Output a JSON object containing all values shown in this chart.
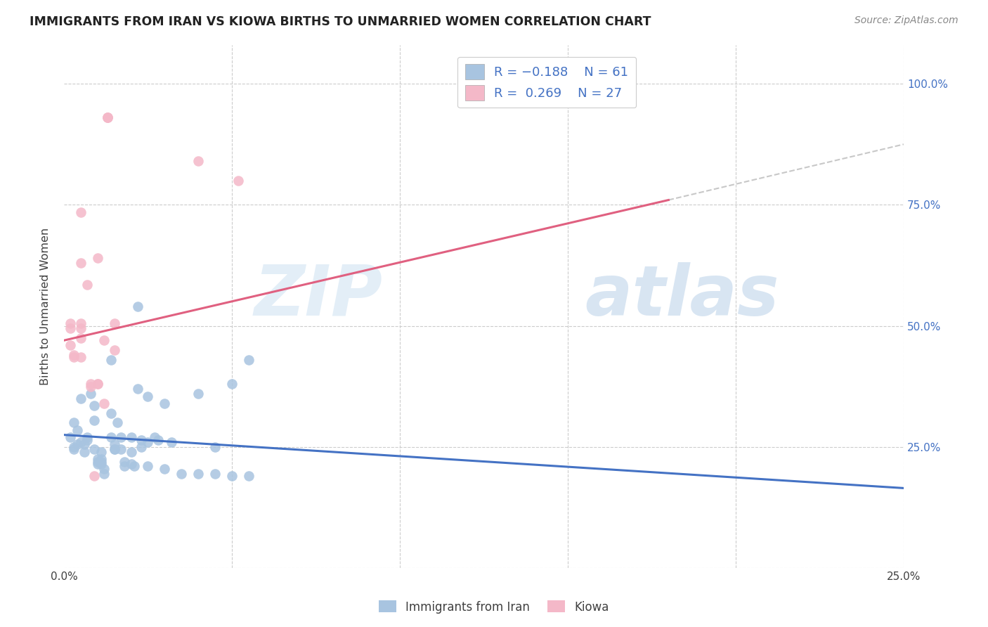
{
  "title": "IMMIGRANTS FROM IRAN VS KIOWA BIRTHS TO UNMARRIED WOMEN CORRELATION CHART",
  "source": "Source: ZipAtlas.com",
  "ylabel": "Births to Unmarried Women",
  "blue_color": "#a8c4e0",
  "pink_color": "#f4b8c8",
  "blue_line_color": "#4472c4",
  "pink_line_color": "#e06080",
  "dashed_line_color": "#c8c8c8",
  "text_color_blue": "#4472c4",
  "text_color_dark": "#404040",
  "background_color": "#ffffff",
  "watermark_zip": "ZIP",
  "watermark_atlas": "atlas",
  "blue_scatter": [
    [
      0.2,
      27.0
    ],
    [
      0.4,
      25.5
    ],
    [
      0.3,
      24.5
    ],
    [
      0.3,
      25.0
    ],
    [
      0.5,
      26.0
    ],
    [
      0.3,
      30.0
    ],
    [
      0.4,
      28.5
    ],
    [
      0.5,
      35.0
    ],
    [
      0.6,
      24.0
    ],
    [
      0.7,
      26.5
    ],
    [
      0.7,
      27.0
    ],
    [
      0.6,
      25.5
    ],
    [
      0.8,
      36.0
    ],
    [
      0.9,
      33.5
    ],
    [
      0.9,
      30.5
    ],
    [
      0.9,
      24.5
    ],
    [
      1.0,
      22.5
    ],
    [
      1.0,
      22.0
    ],
    [
      1.0,
      21.5
    ],
    [
      1.1,
      24.0
    ],
    [
      1.1,
      22.5
    ],
    [
      1.1,
      22.0
    ],
    [
      1.1,
      21.5
    ],
    [
      1.2,
      20.5
    ],
    [
      1.2,
      19.5
    ],
    [
      1.4,
      32.0
    ],
    [
      1.4,
      43.0
    ],
    [
      1.4,
      27.0
    ],
    [
      1.5,
      25.5
    ],
    [
      1.5,
      24.5
    ],
    [
      1.5,
      24.5
    ],
    [
      1.6,
      30.0
    ],
    [
      1.7,
      27.0
    ],
    [
      1.7,
      24.5
    ],
    [
      1.8,
      22.0
    ],
    [
      1.8,
      21.0
    ],
    [
      2.0,
      27.0
    ],
    [
      2.0,
      24.0
    ],
    [
      2.0,
      21.5
    ],
    [
      2.1,
      21.0
    ],
    [
      2.2,
      54.0
    ],
    [
      2.2,
      37.0
    ],
    [
      2.3,
      26.5
    ],
    [
      2.3,
      25.0
    ],
    [
      2.5,
      35.5
    ],
    [
      2.5,
      26.0
    ],
    [
      2.5,
      21.0
    ],
    [
      2.7,
      27.0
    ],
    [
      2.8,
      26.5
    ],
    [
      3.0,
      34.0
    ],
    [
      3.0,
      20.5
    ],
    [
      3.2,
      26.0
    ],
    [
      3.5,
      19.5
    ],
    [
      4.0,
      36.0
    ],
    [
      4.0,
      19.5
    ],
    [
      4.5,
      25.0
    ],
    [
      4.5,
      19.5
    ],
    [
      5.0,
      38.0
    ],
    [
      5.0,
      19.0
    ],
    [
      5.5,
      43.0
    ],
    [
      5.5,
      19.0
    ]
  ],
  "pink_scatter": [
    [
      0.2,
      50.5
    ],
    [
      0.2,
      49.5
    ],
    [
      0.2,
      46.0
    ],
    [
      0.3,
      44.0
    ],
    [
      0.3,
      43.5
    ],
    [
      0.5,
      73.5
    ],
    [
      0.5,
      63.0
    ],
    [
      0.5,
      50.5
    ],
    [
      0.5,
      49.5
    ],
    [
      0.5,
      47.5
    ],
    [
      0.5,
      43.5
    ],
    [
      0.7,
      58.5
    ],
    [
      0.8,
      38.0
    ],
    [
      0.8,
      37.5
    ],
    [
      0.9,
      19.0
    ],
    [
      1.0,
      64.0
    ],
    [
      1.0,
      38.0
    ],
    [
      1.0,
      38.0
    ],
    [
      1.2,
      47.0
    ],
    [
      1.2,
      34.0
    ],
    [
      1.3,
      93.0
    ],
    [
      1.3,
      93.0
    ],
    [
      1.3,
      93.0
    ],
    [
      1.5,
      50.5
    ],
    [
      1.5,
      45.0
    ],
    [
      4.0,
      84.0
    ],
    [
      5.2,
      80.0
    ]
  ],
  "blue_line": [
    [
      0.0,
      27.5
    ],
    [
      25.0,
      16.5
    ]
  ],
  "pink_line": [
    [
      0.0,
      47.0
    ],
    [
      18.0,
      76.0
    ]
  ],
  "dashed_line": [
    [
      18.0,
      76.0
    ],
    [
      25.0,
      87.5
    ]
  ],
  "xlim": [
    0.0,
    25.0
  ],
  "ylim": [
    0.0,
    108.0
  ],
  "xticks": [
    0.0,
    5.0,
    10.0,
    15.0,
    20.0,
    25.0
  ],
  "xtick_labels": [
    "0.0%",
    "",
    "",
    "",
    "",
    "25.0%"
  ],
  "yticks": [
    0.0,
    25.0,
    50.0,
    75.0,
    100.0
  ],
  "ytick_labels_right": [
    "",
    "25.0%",
    "50.0%",
    "75.0%",
    "100.0%"
  ]
}
